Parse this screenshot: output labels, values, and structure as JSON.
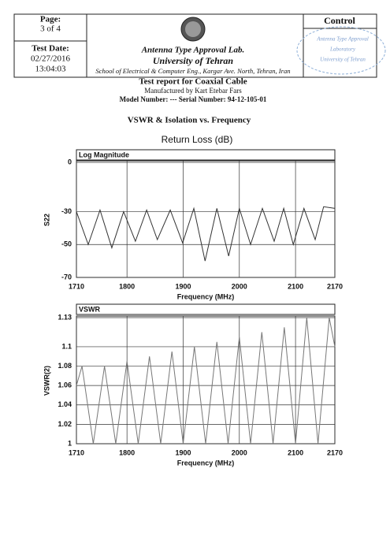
{
  "header": {
    "page_label": "Page:",
    "page": "3 of 4",
    "date_label": "Test Date:",
    "date": "02/27/2016",
    "time": "13:04:03",
    "lab": "Antenna Type Approval Lab.",
    "university": "University of Tehran",
    "address": "School of Electrical & Computer Eng., Kargar Ave. North, Tehran, Iran",
    "control": "Control",
    "stamp": [
      "Antenna Type Approval",
      "Laboratory",
      "University of Tehran"
    ]
  },
  "report": {
    "title": "Test report for Coaxial Cable",
    "manufacturer": "Manufactured by Kart Etebar Fars",
    "model": "Model Number: ---   Serial Number: 94-12-105-01",
    "section": "VSWR & Isolation vs. Frequency",
    "subtitle": "Return Loss (dB)"
  },
  "chart_data": [
    {
      "type": "line",
      "title": "Log Magnitude",
      "x_label": "Frequency (MHz)",
      "y_label": "S22",
      "x": [
        1710,
        1731,
        1752,
        1773,
        1794,
        1815,
        1835,
        1854,
        1877,
        1899,
        1919,
        1939,
        1960,
        1981,
        2000,
        2020,
        2041,
        2062,
        2079,
        2096,
        2115,
        2135,
        2150,
        2170
      ],
      "values": [
        -30,
        -50,
        -29,
        -52,
        -30,
        -48,
        -29,
        -47,
        -29,
        -49,
        -28,
        -60,
        -28,
        -57,
        -28,
        -50,
        -28,
        -48,
        -28,
        -50,
        -28,
        -47,
        -27,
        -28
      ],
      "color": "#333333",
      "xlim": [
        1710,
        2170
      ],
      "xticks": [
        1710,
        1800,
        1900,
        2000,
        2100,
        2170
      ],
      "ylim": [
        -70,
        0
      ],
      "yticks": [
        0,
        -30,
        -50,
        -70
      ],
      "grid": true
    },
    {
      "type": "line",
      "title": "VSWR",
      "x_label": "Frequency (MHz)",
      "y_label": "VSWR(2)",
      "x": [
        1710,
        1720,
        1740,
        1760,
        1780,
        1800,
        1820,
        1840,
        1860,
        1880,
        1900,
        1920,
        1940,
        1960,
        1980,
        2000,
        2020,
        2040,
        2060,
        2080,
        2100,
        2120,
        2140,
        2160,
        2170
      ],
      "values": [
        1.06,
        1.08,
        1.0,
        1.08,
        1.0,
        1.085,
        1.0,
        1.09,
        1.0,
        1.095,
        1.0,
        1.1,
        1.0,
        1.105,
        1.0,
        1.11,
        1.0,
        1.115,
        1.0,
        1.12,
        1.0,
        1.13,
        1.0,
        1.13,
        1.1
      ],
      "color": "#777777",
      "xlim": [
        1710,
        2170
      ],
      "xticks": [
        1710,
        1800,
        1900,
        2000,
        2100,
        2170
      ],
      "ylim": [
        1,
        1.13
      ],
      "yticks": [
        1,
        1.02,
        1.04,
        1.06,
        1.08,
        1.1,
        1.13
      ],
      "grid": true
    }
  ]
}
